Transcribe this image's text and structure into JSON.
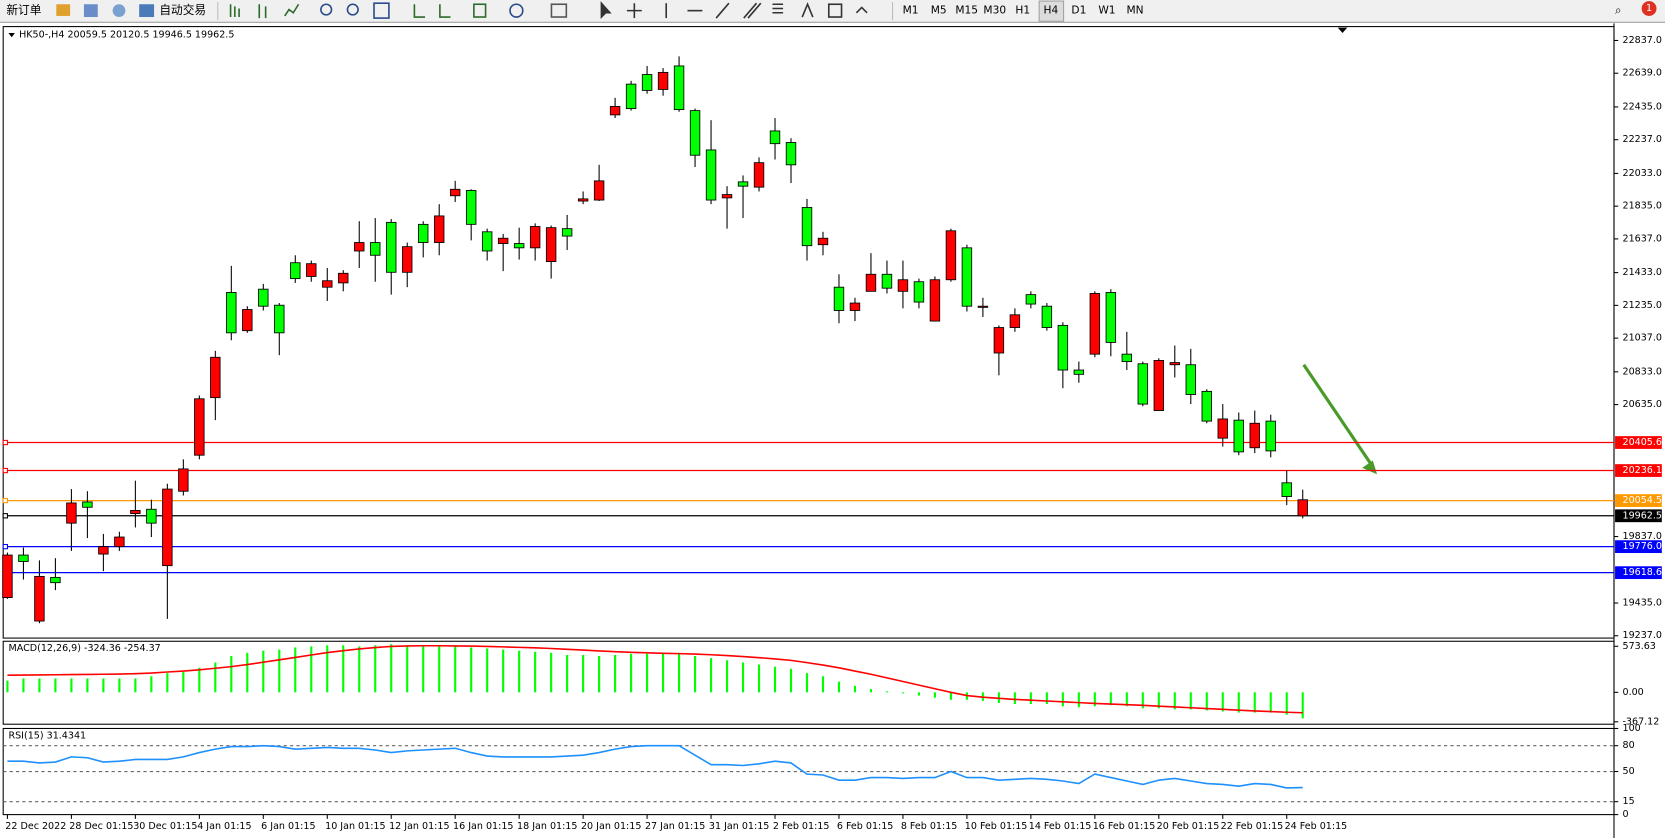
{
  "toolbar": {
    "new_order": "新订单",
    "auto_trading": "自动交易",
    "timeframes": [
      "M1",
      "M5",
      "M15",
      "M30",
      "H1",
      "H4",
      "D1",
      "W1",
      "MN"
    ],
    "notifications": 1
  },
  "chart_data": [
    {
      "type": "candlestick",
      "title": "HK50-,H4 20059.5 20120.5 19946.5 19962.5",
      "categories": [
        "22 Dec 2022",
        null,
        null,
        null,
        "28 Dec 01:15",
        null,
        null,
        null,
        "30 Dec 01:15",
        null,
        null,
        null,
        "4 Jan 01:15",
        null,
        null,
        null,
        "6 Jan 01:15",
        null,
        null,
        null,
        "10 Jan 01:15",
        null,
        null,
        null,
        "12 Jan 01:15",
        null,
        null,
        null,
        "16 Jan 01:15",
        null,
        null,
        null,
        "18 Jan 01:15",
        null,
        null,
        null,
        "20 Jan 01:15",
        null,
        null,
        null,
        "27 Jan 01:15",
        null,
        null,
        null,
        "31 Jan 01:15",
        null,
        null,
        null,
        "2 Feb 01:15",
        null,
        null,
        null,
        "6 Feb 01:15",
        null,
        null,
        null,
        "8 Feb 01:15",
        null,
        null,
        null,
        "10 Feb 01:15",
        null,
        null,
        null,
        "14 Feb 01:15",
        null,
        null,
        null,
        "16 Feb 01:15",
        null,
        null,
        null,
        "20 Feb 01:15",
        null,
        null,
        null,
        "22 Feb 01:15",
        null,
        null,
        null,
        "24 Feb 01:15",
        null
      ],
      "open": [
        19725,
        19686,
        19596,
        19558,
        20040,
        20014,
        19776,
        19834,
        19995,
        19918,
        20124,
        20246,
        20670,
        20921,
        21069,
        21210,
        21230,
        21069,
        21397,
        21487,
        21384,
        21429,
        21615,
        21538,
        21435,
        21590,
        21615,
        21776,
        21937,
        21725,
        21564,
        21641,
        21583,
        21712,
        21705,
        21654,
        21879,
        21988,
        22438,
        22425,
        22535,
        22644,
        22419,
        22143,
        21872,
        21905,
        21956,
        22098,
        22213,
        22085,
        21596,
        21641,
        21204,
        21249,
        21423,
        21339,
        21390,
        21255,
        21390,
        21686,
        21230,
        21230,
        21101,
        21178,
        21243,
        21101,
        20844,
        20818,
        21307,
        21011,
        20895,
        20638,
        20902,
        20889,
        20696,
        20535,
        20548,
        20349,
        20522,
        20355,
        20079,
        20059.5
      ],
      "high": [
        19740,
        19770,
        19693,
        19706,
        20124,
        20111,
        19853,
        19866,
        20175,
        20060,
        20156,
        20304,
        20690,
        20960,
        21474,
        21230,
        21365,
        21249,
        21538,
        21506,
        21461,
        21448,
        21744,
        21763,
        21757,
        21615,
        21744,
        21847,
        21988,
        21937,
        21699,
        21667,
        21705,
        21731,
        21718,
        21782,
        21924,
        22085,
        22490,
        22593,
        22683,
        22670,
        22741,
        22425,
        22355,
        21956,
        22021,
        22130,
        22368,
        22246,
        21879,
        21680,
        21423,
        21281,
        21551,
        21506,
        21506,
        21397,
        21410,
        21699,
        21602,
        21281,
        21114,
        21217,
        21320,
        21249,
        21133,
        20895,
        21320,
        21333,
        21075,
        20895,
        20915,
        20992,
        20972,
        20728,
        20638,
        20587,
        20599,
        20574,
        20239,
        20120.5
      ],
      "low": [
        19460,
        19577,
        19313,
        19513,
        19750,
        19828,
        19628,
        19750,
        19892,
        19834,
        19339,
        20085,
        20304,
        20541,
        21024,
        21069,
        21204,
        20934,
        21371,
        21378,
        21262,
        21320,
        21461,
        21378,
        21300,
        21345,
        21525,
        21538,
        21860,
        21628,
        21506,
        21442,
        21512,
        21506,
        21397,
        21570,
        21847,
        21866,
        22368,
        22413,
        22515,
        22503,
        22406,
        22072,
        21847,
        21699,
        21763,
        21924,
        22117,
        21975,
        21506,
        21538,
        21127,
        21140,
        21320,
        21307,
        21217,
        21217,
        21140,
        21378,
        21198,
        21165,
        20812,
        21075,
        21217,
        21082,
        20734,
        20767,
        20921,
        20927,
        20844,
        20625,
        20599,
        20799,
        20638,
        20522,
        20381,
        20329,
        20342,
        20316,
        20027,
        19946.5
      ],
      "close": [
        19468,
        19725,
        19326,
        19590,
        19918,
        20046,
        19731,
        19776,
        19976,
        20002,
        19661,
        20111,
        20329,
        20677,
        21313,
        21082,
        21333,
        21236,
        21493,
        21410,
        21345,
        21371,
        21564,
        21615,
        21737,
        21435,
        21725,
        21615,
        21898,
        21930,
        21680,
        21609,
        21609,
        21583,
        21500,
        21699,
        21866,
        21872,
        22387,
        22573,
        22631,
        22541,
        22683,
        22413,
        22175,
        21885,
        21982,
        21950,
        22290,
        22220,
        21827,
        21602,
        21345,
        21204,
        21320,
        21423,
        21320,
        21378,
        21140,
        21390,
        21583,
        21223,
        20947,
        21101,
        21300,
        21230,
        21114,
        20844,
        20940,
        21313,
        20940,
        20882,
        20599,
        20876,
        20876,
        20715,
        20432,
        20541,
        20374,
        20535,
        20162,
        19962.5
      ],
      "up_color": "#00ff00",
      "down_color": "#ff0000",
      "ylim": [
        19223,
        22921
      ],
      "yticks": [
        {
          "value": 22837,
          "label": "22837.0"
        },
        {
          "value": 22639,
          "label": "22639.0"
        },
        {
          "value": 22435,
          "label": "22435.0"
        },
        {
          "value": 22237,
          "label": "22237.0"
        },
        {
          "value": 22033,
          "label": "22033.0"
        },
        {
          "value": 21835,
          "label": "21835.0"
        },
        {
          "value": 21637,
          "label": "21637.0"
        },
        {
          "value": 21433,
          "label": "21433.0"
        },
        {
          "value": 21235,
          "label": "21235.0"
        },
        {
          "value": 21037,
          "label": "21037.0"
        },
        {
          "value": 20833,
          "label": "20833.0"
        },
        {
          "value": 20635,
          "label": "20635.0"
        },
        {
          "value": 19837,
          "label": "19837.0"
        },
        {
          "value": 19435,
          "label": "19435.0"
        },
        {
          "value": 19237,
          "label": "19237.0"
        }
      ],
      "levels": [
        {
          "value": 20405.6,
          "color": "#ff0000"
        },
        {
          "value": 20236.1,
          "color": "#ff0000"
        },
        {
          "value": 20054.5,
          "color": "#ff9900"
        },
        {
          "value": 19962.5,
          "color": "#000000"
        },
        {
          "value": 19776,
          "label": "19776.0",
          "color": "#0000ff"
        },
        {
          "value": 19618.6,
          "color": "#0000ff"
        }
      ]
    },
    {
      "type": "macd",
      "title": "MACD(12,26,9) -324.36 -254.37",
      "histogram": [
        146,
        173,
        173,
        173,
        173,
        173,
        173,
        173,
        173,
        200,
        239,
        253,
        306,
        372,
        452,
        492,
        519,
        532,
        559,
        572,
        585,
        585,
        572,
        585,
        599,
        585,
        572,
        572,
        572,
        559,
        545,
        532,
        519,
        505,
        492,
        466,
        466,
        452,
        466,
        479,
        479,
        479,
        492,
        452,
        426,
        399,
        372,
        346,
        319,
        293,
        239,
        200,
        133,
        80,
        40,
        13,
        -13,
        -40,
        -67,
        -93,
        -93,
        -106,
        -133,
        -146,
        -146,
        -146,
        -173,
        -186,
        -173,
        -160,
        -173,
        -200,
        -200,
        -213,
        -213,
        -226,
        -239,
        -253,
        -253,
        -253,
        -279,
        -324.36
      ],
      "signal": [
        213,
        215,
        217,
        219,
        221,
        223,
        225,
        228,
        232,
        240,
        253,
        265,
        280,
        300,
        320,
        346,
        375,
        405,
        435,
        465,
        495,
        519,
        540,
        558,
        572,
        578,
        580,
        580,
        578,
        576,
        572,
        566,
        560,
        554,
        546,
        536,
        526,
        516,
        506,
        498,
        492,
        486,
        482,
        476,
        468,
        458,
        446,
        432,
        416,
        398,
        370,
        340,
        305,
        265,
        225,
        180,
        135,
        90,
        45,
        0,
        -40,
        -60,
        -75,
        -88,
        -98,
        -108,
        -118,
        -128,
        -138,
        -146,
        -154,
        -162,
        -172,
        -182,
        -192,
        -202,
        -212,
        -222,
        -232,
        -240,
        -248,
        -254.37
      ],
      "histogram_color": "#00ff00",
      "signal_color": "#ff0000",
      "ylim": [
        -397,
        636
      ],
      "yticks": [
        573.63,
        {
          "value": 0,
          "label": "0.00"
        },
        -367.12
      ]
    },
    {
      "type": "line",
      "title": "RSI(15) 31.4341",
      "values": [
        62,
        62,
        60,
        61,
        67,
        66,
        61,
        62,
        64,
        64,
        64,
        67,
        72,
        76,
        79,
        79,
        80,
        79,
        76,
        77,
        78,
        77,
        77,
        75,
        72,
        74,
        75,
        76,
        77,
        72,
        68,
        67,
        67,
        67,
        67,
        68,
        69,
        72,
        76,
        79,
        80,
        80,
        80,
        69,
        58,
        58,
        57,
        59,
        62,
        60,
        47,
        46,
        40,
        40,
        43,
        43,
        42,
        43,
        43,
        50,
        43,
        43,
        40,
        41,
        42,
        41,
        39,
        36,
        47,
        43,
        39,
        35,
        40,
        42,
        39,
        36,
        35,
        33,
        36,
        35,
        31,
        31.4341
      ],
      "color": "#1e90ff",
      "ylim": [
        0,
        100
      ],
      "yticks": [
        100,
        80,
        50,
        15,
        0
      ]
    }
  ]
}
